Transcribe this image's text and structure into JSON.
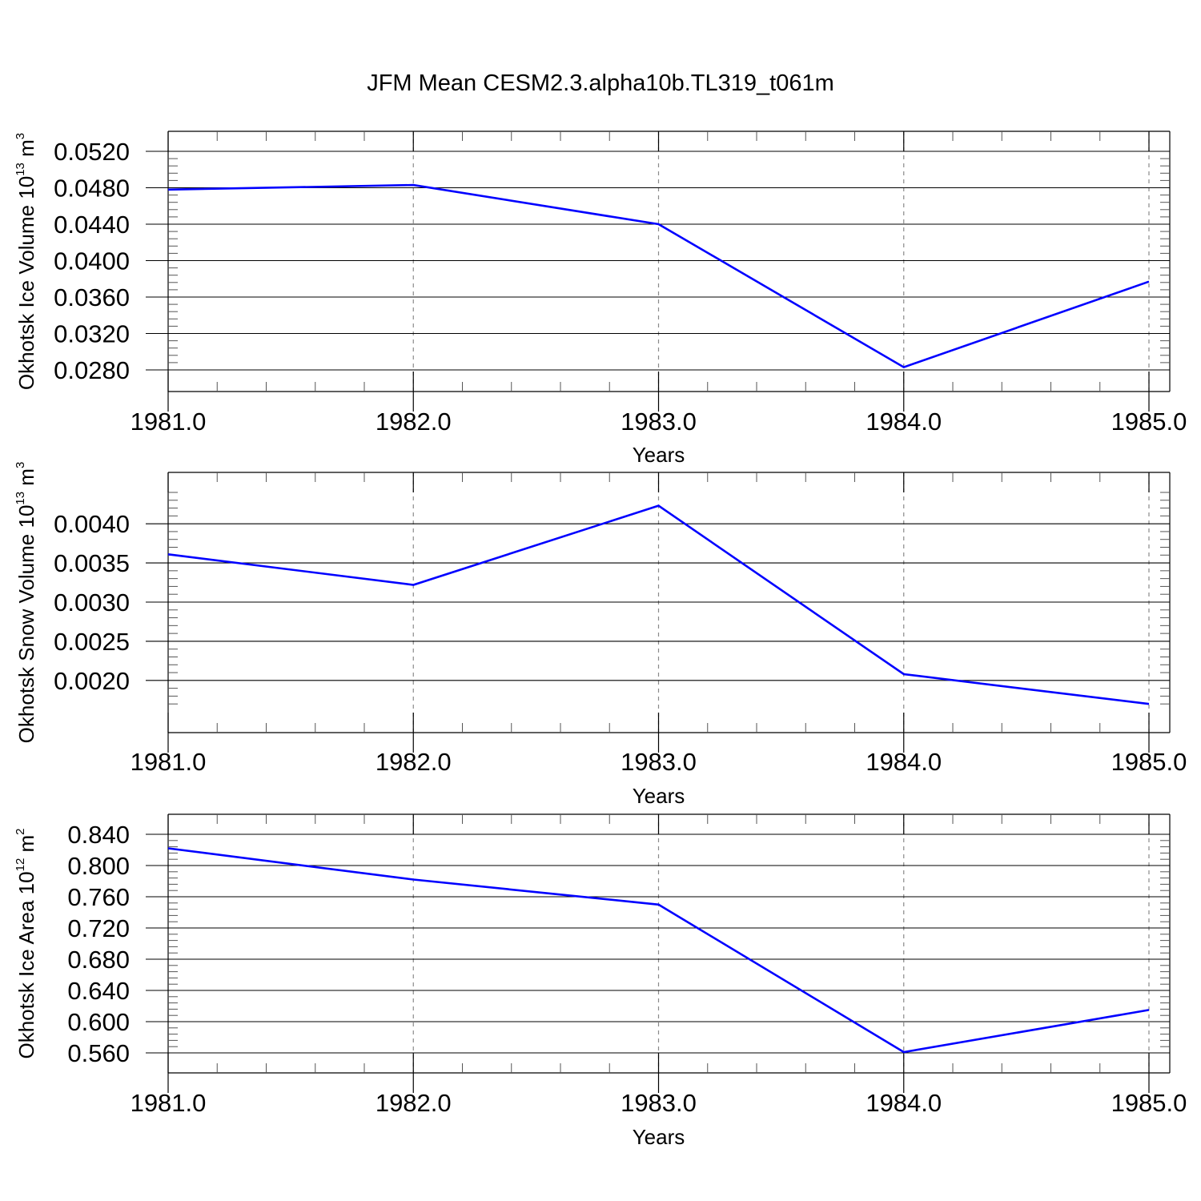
{
  "figure": {
    "title": "JFM Mean CESM2.3.alpha10b.TL319_t061m"
  },
  "chart_data": [
    {
      "type": "line",
      "title": "",
      "xlabel": "Years",
      "ylabel": "Okhotsk Ice Volume 10",
      "ylabel_sup": "13",
      "ylabel_unit": " m",
      "ylabel_unit_sup": "3",
      "xlim": [
        1981,
        1985
      ],
      "ylim": [
        0.028,
        0.052
      ],
      "x_ticks": [
        1981,
        1982,
        1983,
        1984,
        1985
      ],
      "x_tick_labels": [
        "1981.0",
        "1982.0",
        "1983.0",
        "1984.0",
        "1985.0"
      ],
      "y_ticks": [
        0.028,
        0.032,
        0.036,
        0.04,
        0.044,
        0.048,
        0.052
      ],
      "y_tick_labels": [
        "0.0280",
        "0.0320",
        "0.0360",
        "0.0400",
        "0.0440",
        "0.0480",
        "0.0520"
      ],
      "y_minor_step": 0.0008,
      "x_minor_step": 0.2,
      "grid": "vertical dashed at major x ticks",
      "line_color": "#0000ff",
      "series": [
        {
          "x": [
            1981,
            1982,
            1983,
            1984,
            1985
          ],
          "values": [
            0.0478,
            0.0483,
            0.044,
            0.0283,
            0.0377
          ]
        }
      ]
    },
    {
      "type": "line",
      "title": "",
      "xlabel": "Years",
      "ylabel": "Okhotsk Snow Volume 10",
      "ylabel_sup": "13",
      "ylabel_unit": " m",
      "ylabel_unit_sup": "3",
      "xlim": [
        1981,
        1985
      ],
      "ylim": [
        0.00161,
        0.0044
      ],
      "x_ticks": [
        1981,
        1982,
        1983,
        1984,
        1985
      ],
      "x_tick_labels": [
        "1981.0",
        "1982.0",
        "1983.0",
        "1984.0",
        "1985.0"
      ],
      "y_ticks": [
        0.002,
        0.0025,
        0.003,
        0.0035,
        0.004
      ],
      "y_tick_labels": [
        "0.0020",
        "0.0025",
        "0.0030",
        "0.0035",
        "0.0040"
      ],
      "y_minor_step": 0.0001,
      "x_minor_step": 0.2,
      "grid": "vertical dashed at major x ticks",
      "line_color": "#0000ff",
      "series": [
        {
          "x": [
            1981,
            1982,
            1983,
            1984,
            1985
          ],
          "values": [
            0.00361,
            0.00322,
            0.00423,
            0.00208,
            0.0017
          ]
        }
      ]
    },
    {
      "type": "line",
      "title": "",
      "xlabel": "Years",
      "ylabel": "Okhotsk Ice Area 10",
      "ylabel_sup": "12",
      "ylabel_unit": " m",
      "ylabel_unit_sup": "2",
      "xlim": [
        1981,
        1985
      ],
      "ylim": [
        0.56,
        0.84
      ],
      "x_ticks": [
        1981,
        1982,
        1983,
        1984,
        1985
      ],
      "x_tick_labels": [
        "1981.0",
        "1982.0",
        "1983.0",
        "1984.0",
        "1985.0"
      ],
      "y_ticks": [
        0.56,
        0.6,
        0.64,
        0.68,
        0.72,
        0.76,
        0.8,
        0.84
      ],
      "y_tick_labels": [
        "0.560",
        "0.600",
        "0.640",
        "0.680",
        "0.720",
        "0.760",
        "0.800",
        "0.840"
      ],
      "y_minor_step": 0.008,
      "x_minor_step": 0.2,
      "grid": "vertical dashed at major x ticks",
      "line_color": "#0000ff",
      "series": [
        {
          "x": [
            1981,
            1982,
            1983,
            1984,
            1985
          ],
          "values": [
            0.822,
            0.782,
            0.75,
            0.561,
            0.615
          ]
        }
      ]
    }
  ]
}
